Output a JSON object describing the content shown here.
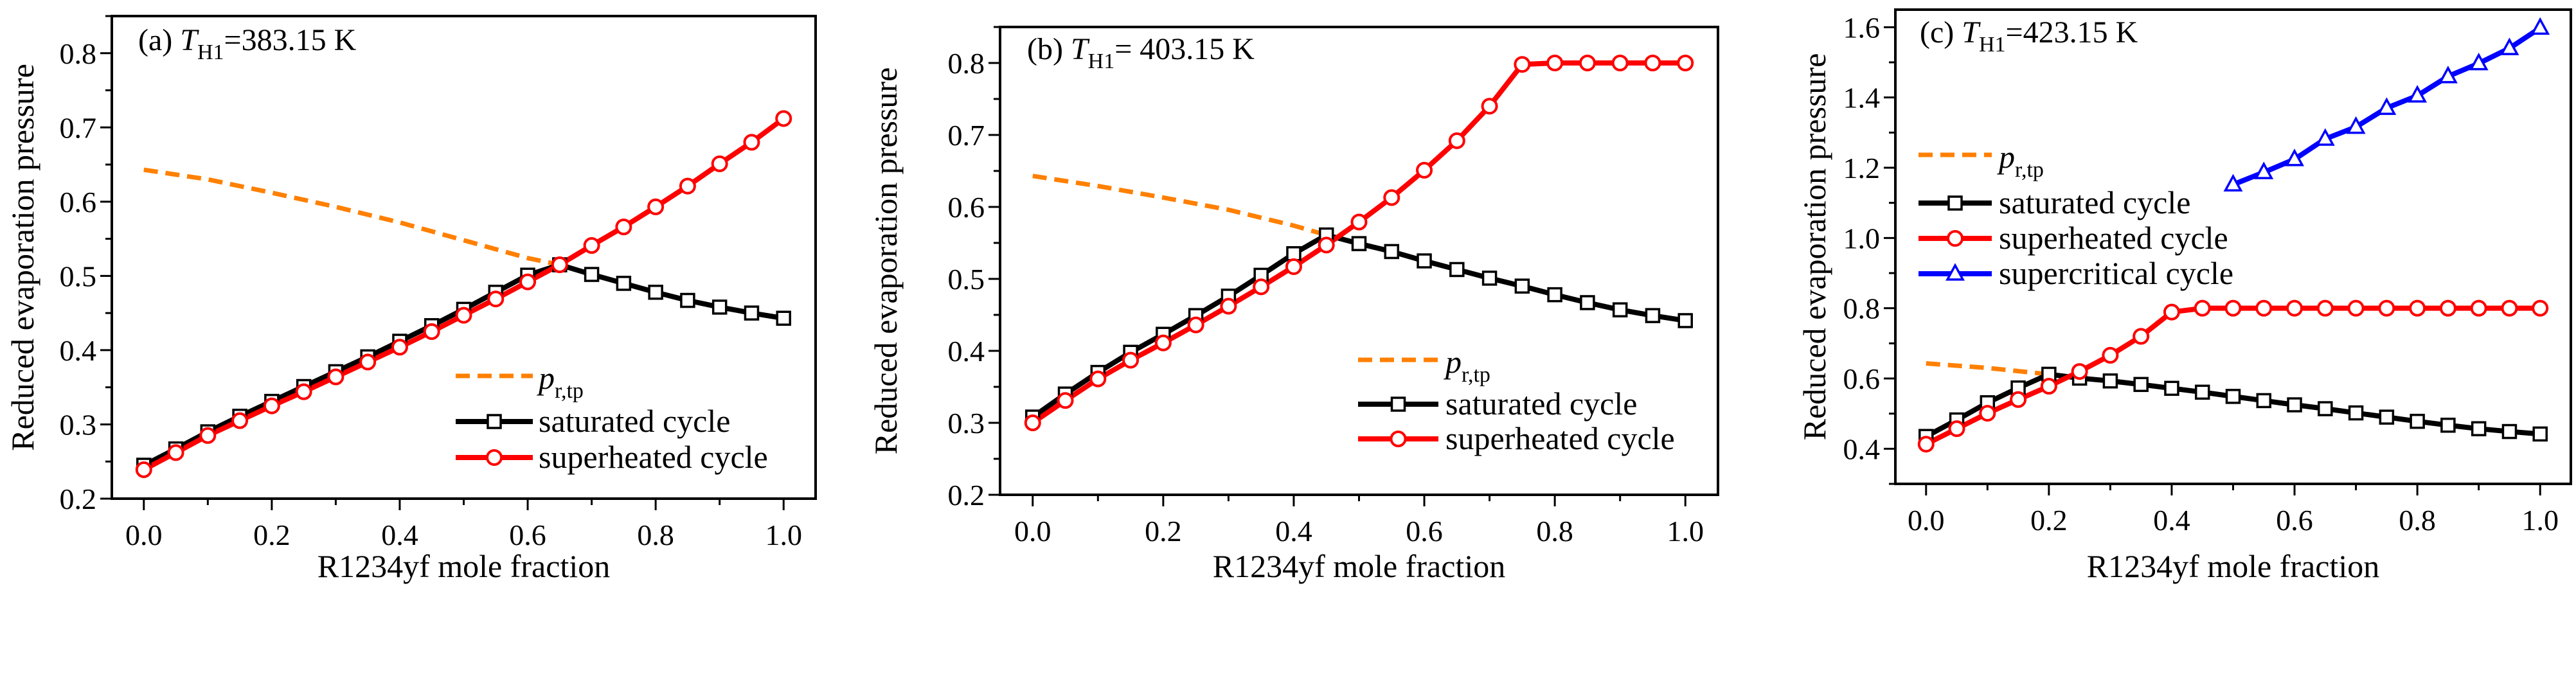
{
  "chart_data": [
    {
      "type": "line",
      "title_prefix": "(a) ",
      "title_T": "T",
      "title_sub": "H1",
      "title_value": "=383.15 K",
      "xlabel": "R1234yf mole fraction",
      "ylabel": "Reduced evaporation pressure",
      "xlim": [
        -0.05,
        1.05
      ],
      "ylim": [
        0.2,
        0.85
      ],
      "xticks": [
        "0.0",
        "0.2",
        "0.4",
        "0.6",
        "0.8",
        "1.0"
      ],
      "yticks": [
        "0.2",
        "0.3",
        "0.4",
        "0.5",
        "0.6",
        "0.7",
        "0.8"
      ],
      "legend": [
        {
          "label_main": "p",
          "label_sub": "r,tp",
          "series": 0
        },
        {
          "label": "saturated cycle",
          "series": 1
        },
        {
          "label": "superheated cycle",
          "series": 2
        }
      ],
      "series": [
        {
          "name": "p_r,tp",
          "color": "#ff8000",
          "style": "dashed",
          "marker": "none",
          "x": [
            0,
            0.1,
            0.2,
            0.3,
            0.4,
            0.5,
            0.6,
            0.65
          ],
          "y": [
            0.643,
            0.63,
            0.612,
            0.593,
            0.572,
            0.548,
            0.524,
            0.515
          ]
        },
        {
          "name": "saturated cycle",
          "color": "#000000",
          "style": "solid",
          "marker": "square",
          "x": [
            0,
            0.05,
            0.1,
            0.15,
            0.2,
            0.25,
            0.3,
            0.35,
            0.4,
            0.45,
            0.5,
            0.55,
            0.6,
            0.65,
            0.7,
            0.75,
            0.8,
            0.85,
            0.9,
            0.95,
            1.0
          ],
          "y": [
            0.245,
            0.267,
            0.29,
            0.311,
            0.331,
            0.351,
            0.371,
            0.391,
            0.412,
            0.433,
            0.455,
            0.478,
            0.501,
            0.515,
            0.502,
            0.49,
            0.478,
            0.467,
            0.458,
            0.45,
            0.443
          ]
        },
        {
          "name": "superheated cycle",
          "color": "#ff0000",
          "style": "solid",
          "marker": "circle",
          "x": [
            0,
            0.05,
            0.1,
            0.15,
            0.2,
            0.25,
            0.3,
            0.35,
            0.4,
            0.45,
            0.5,
            0.55,
            0.6,
            0.65,
            0.7,
            0.75,
            0.8,
            0.85,
            0.9,
            0.95,
            1.0
          ],
          "y": [
            0.239,
            0.262,
            0.285,
            0.305,
            0.325,
            0.344,
            0.364,
            0.384,
            0.404,
            0.425,
            0.447,
            0.469,
            0.492,
            0.515,
            0.541,
            0.566,
            0.593,
            0.621,
            0.651,
            0.68,
            0.712
          ]
        }
      ]
    },
    {
      "type": "line",
      "title_prefix": "(b) ",
      "title_T": "T",
      "title_sub": "H1",
      "title_value": "= 403.15 K",
      "xlabel": "R1234yf mole fraction",
      "ylabel": "Reduced evaporation pressure",
      "xlim": [
        -0.05,
        1.05
      ],
      "ylim": [
        0.2,
        0.85
      ],
      "xticks": [
        "0.0",
        "0.2",
        "0.4",
        "0.6",
        "0.8",
        "1.0"
      ],
      "yticks": [
        "0.2",
        "0.3",
        "0.4",
        "0.5",
        "0.6",
        "0.7",
        "0.8"
      ],
      "legend": [
        {
          "label_main": "p",
          "label_sub": "r,tp",
          "series": 0
        },
        {
          "label": "saturated cycle",
          "series": 1
        },
        {
          "label": "superheated cycle",
          "series": 2
        }
      ],
      "series": [
        {
          "name": "p_r,tp",
          "color": "#ff8000",
          "style": "dashed",
          "marker": "none",
          "x": [
            0,
            0.1,
            0.2,
            0.3,
            0.4,
            0.45
          ],
          "y": [
            0.643,
            0.629,
            0.613,
            0.596,
            0.574,
            0.561
          ]
        },
        {
          "name": "saturated cycle",
          "color": "#000000",
          "style": "solid",
          "marker": "square",
          "x": [
            0,
            0.05,
            0.1,
            0.15,
            0.2,
            0.25,
            0.3,
            0.35,
            0.4,
            0.45,
            0.5,
            0.55,
            0.6,
            0.65,
            0.7,
            0.75,
            0.8,
            0.85,
            0.9,
            0.95,
            1.0
          ],
          "y": [
            0.308,
            0.34,
            0.37,
            0.398,
            0.423,
            0.449,
            0.476,
            0.505,
            0.535,
            0.561,
            0.549,
            0.538,
            0.525,
            0.513,
            0.501,
            0.49,
            0.478,
            0.467,
            0.457,
            0.449,
            0.442
          ]
        },
        {
          "name": "superheated cycle",
          "color": "#ff0000",
          "style": "solid",
          "marker": "circle",
          "x": [
            0,
            0.05,
            0.1,
            0.15,
            0.2,
            0.25,
            0.3,
            0.35,
            0.4,
            0.45,
            0.5,
            0.55,
            0.6,
            0.65,
            0.7,
            0.75,
            0.8,
            0.85,
            0.9,
            0.95,
            1.0
          ],
          "y": [
            0.3,
            0.331,
            0.361,
            0.387,
            0.411,
            0.436,
            0.462,
            0.489,
            0.517,
            0.547,
            0.579,
            0.613,
            0.651,
            0.692,
            0.74,
            0.798,
            0.8,
            0.8,
            0.8,
            0.8,
            0.8
          ]
        }
      ]
    },
    {
      "type": "line",
      "title_prefix": "(c) ",
      "title_T": "T",
      "title_sub": "H1",
      "title_value": "=423.15 K",
      "xlabel": "R1234yf mole fraction",
      "ylabel": "Reduced evaporation pressure",
      "xlim": [
        -0.05,
        1.05
      ],
      "ylim": [
        0.3,
        1.65
      ],
      "xticks": [
        "0.0",
        "0.2",
        "0.4",
        "0.6",
        "0.8",
        "1.0"
      ],
      "yticks": [
        "0.4",
        "0.6",
        "0.8",
        "1.0",
        "1.2",
        "1.4",
        "1.6"
      ],
      "legend": [
        {
          "label_main": "p",
          "label_sub": "r,tp",
          "series": 0
        },
        {
          "label": "saturated cycle",
          "series": 1
        },
        {
          "label": "superheated cycle",
          "series": 2
        },
        {
          "label": "supercritical cycle",
          "series": 3
        }
      ],
      "series": [
        {
          "name": "p_r,tp",
          "color": "#ff8000",
          "style": "dashed",
          "marker": "none",
          "x": [
            0,
            0.1,
            0.2
          ],
          "y": [
            0.643,
            0.63,
            0.612
          ]
        },
        {
          "name": "saturated cycle",
          "color": "#000000",
          "style": "solid",
          "marker": "square",
          "x": [
            0,
            0.05,
            0.1,
            0.15,
            0.2,
            0.25,
            0.3,
            0.35,
            0.4,
            0.45,
            0.5,
            0.55,
            0.6,
            0.65,
            0.7,
            0.75,
            0.8,
            0.85,
            0.9,
            0.95,
            1.0
          ],
          "y": [
            0.435,
            0.482,
            0.531,
            0.573,
            0.612,
            0.601,
            0.593,
            0.583,
            0.572,
            0.561,
            0.549,
            0.537,
            0.525,
            0.514,
            0.502,
            0.49,
            0.478,
            0.467,
            0.457,
            0.449,
            0.442
          ]
        },
        {
          "name": "superheated cycle",
          "color": "#ff0000",
          "style": "solid",
          "marker": "circle",
          "x": [
            0,
            0.05,
            0.1,
            0.15,
            0.2,
            0.25,
            0.3,
            0.35,
            0.4,
            0.45,
            0.5,
            0.55,
            0.6,
            0.65,
            0.7,
            0.75,
            0.8,
            0.85,
            0.9,
            0.95,
            1.0
          ],
          "y": [
            0.413,
            0.457,
            0.501,
            0.54,
            0.578,
            0.62,
            0.666,
            0.72,
            0.789,
            0.8,
            0.8,
            0.8,
            0.8,
            0.8,
            0.8,
            0.8,
            0.8,
            0.8,
            0.8,
            0.8,
            0.8
          ]
        },
        {
          "name": "supercritical cycle",
          "color": "#0000ff",
          "style": "solid",
          "marker": "triangle",
          "x": [
            0.5,
            0.55,
            0.6,
            0.65,
            0.7,
            0.75,
            0.8,
            0.85,
            0.9,
            0.95,
            1.0
          ],
          "y": [
            1.152,
            1.187,
            1.224,
            1.282,
            1.316,
            1.37,
            1.405,
            1.46,
            1.497,
            1.54,
            1.598
          ]
        }
      ]
    }
  ]
}
